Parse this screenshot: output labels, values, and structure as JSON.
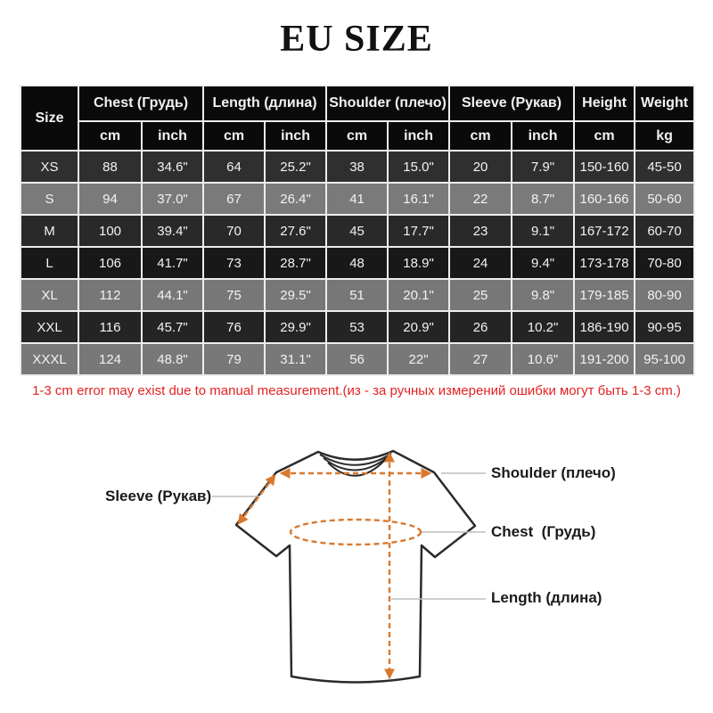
{
  "title": "EU SIZE",
  "table": {
    "header": {
      "size": "Size",
      "groups": [
        {
          "label": "Chest  (Грудь)",
          "units": [
            "cm",
            "inch"
          ]
        },
        {
          "label": "Length (длина)",
          "units": [
            "cm",
            "inch"
          ]
        },
        {
          "label": "Shoulder (плечо)",
          "units": [
            "cm",
            "inch"
          ]
        },
        {
          "label": "Sleeve (Рукав)",
          "units": [
            "cm",
            "inch"
          ]
        },
        {
          "label": "Height",
          "units": [
            "cm"
          ]
        },
        {
          "label": "Weight",
          "units": [
            "kg"
          ]
        }
      ]
    },
    "rows": [
      {
        "size": "XS",
        "bg": "#2f2f2f",
        "values": [
          "88",
          "34.6\"",
          "64",
          "25.2\"",
          "38",
          "15.0\"",
          "20",
          "7.9\"",
          "150-160",
          "45-50"
        ]
      },
      {
        "size": "S",
        "bg": "#7a7a7a",
        "values": [
          "94",
          "37.0\"",
          "67",
          "26.4\"",
          "41",
          "16.1\"",
          "22",
          "8.7\"",
          "160-166",
          "50-60"
        ]
      },
      {
        "size": "M",
        "bg": "#292929",
        "values": [
          "100",
          "39.4\"",
          "70",
          "27.6\"",
          "45",
          "17.7\"",
          "23",
          "9.1\"",
          "167-172",
          "60-70"
        ]
      },
      {
        "size": "L",
        "bg": "#181818",
        "values": [
          "106",
          "41.7\"",
          "73",
          "28.7\"",
          "48",
          "18.9\"",
          "24",
          "9.4\"",
          "173-178",
          "70-80"
        ]
      },
      {
        "size": "XL",
        "bg": "#777777",
        "values": [
          "112",
          "44.1\"",
          "75",
          "29.5\"",
          "51",
          "20.1\"",
          "25",
          "9.8\"",
          "179-185",
          "80-90"
        ]
      },
      {
        "size": "XXL",
        "bg": "#242424",
        "values": [
          "116",
          "45.7\"",
          "76",
          "29.9\"",
          "53",
          "20.9\"",
          "26",
          "10.2\"",
          "186-190",
          "90-95"
        ]
      },
      {
        "size": "XXXL",
        "bg": "#787878",
        "values": [
          "124",
          "48.8\"",
          "79",
          "31.1\"",
          "56",
          "22\"",
          "27",
          "10.6\"",
          "191-200",
          "95-100"
        ]
      }
    ]
  },
  "note": "1-3 cm error may exist due to manual measurement.(из - за ручных измерений ошибки могут быть 1-3 cm.)",
  "diagram": {
    "labels": {
      "shoulder": "Shoulder (плечо)",
      "chest": "Chest  (Грудь)",
      "length": "Length (длина)",
      "sleeve": "Sleeve (Рукав)"
    }
  },
  "colors": {
    "accent_orange": "#d9782d",
    "note_red": "#e32222",
    "header_bg": "#0a0a0a",
    "grid_line": "#ededed",
    "cell_text": "#f2f2f2"
  },
  "chart_data": {
    "type": "table",
    "title": "EU SIZE",
    "columns": [
      "Size",
      "Chest cm",
      "Chest inch",
      "Length cm",
      "Length inch",
      "Shoulder cm",
      "Shoulder inch",
      "Sleeve cm",
      "Sleeve inch",
      "Height cm",
      "Weight kg"
    ],
    "rows": [
      [
        "XS",
        88,
        "34.6\"",
        64,
        "25.2\"",
        38,
        "15.0\"",
        20,
        "7.9\"",
        "150-160",
        "45-50"
      ],
      [
        "S",
        94,
        "37.0\"",
        67,
        "26.4\"",
        41,
        "16.1\"",
        22,
        "8.7\"",
        "160-166",
        "50-60"
      ],
      [
        "M",
        100,
        "39.4\"",
        70,
        "27.6\"",
        45,
        "17.7\"",
        23,
        "9.1\"",
        "167-172",
        "60-70"
      ],
      [
        "L",
        106,
        "41.7\"",
        73,
        "28.7\"",
        48,
        "18.9\"",
        24,
        "9.4\"",
        "173-178",
        "70-80"
      ],
      [
        "XL",
        112,
        "44.1\"",
        75,
        "29.5\"",
        51,
        "20.1\"",
        25,
        "9.8\"",
        "179-185",
        "80-90"
      ],
      [
        "XXL",
        116,
        "45.7\"",
        76,
        "29.9\"",
        53,
        "20.9\"",
        26,
        "10.2\"",
        "186-190",
        "90-95"
      ],
      [
        "XXXL",
        124,
        "48.8\"",
        79,
        "31.1\"",
        56,
        "22\"",
        27,
        "10.6\"",
        "191-200",
        "95-100"
      ]
    ],
    "footnote": "1-3 cm error may exist due to manual measurement.(из - за ручных измерений ошибки могут быть 1-3 cm.)"
  }
}
